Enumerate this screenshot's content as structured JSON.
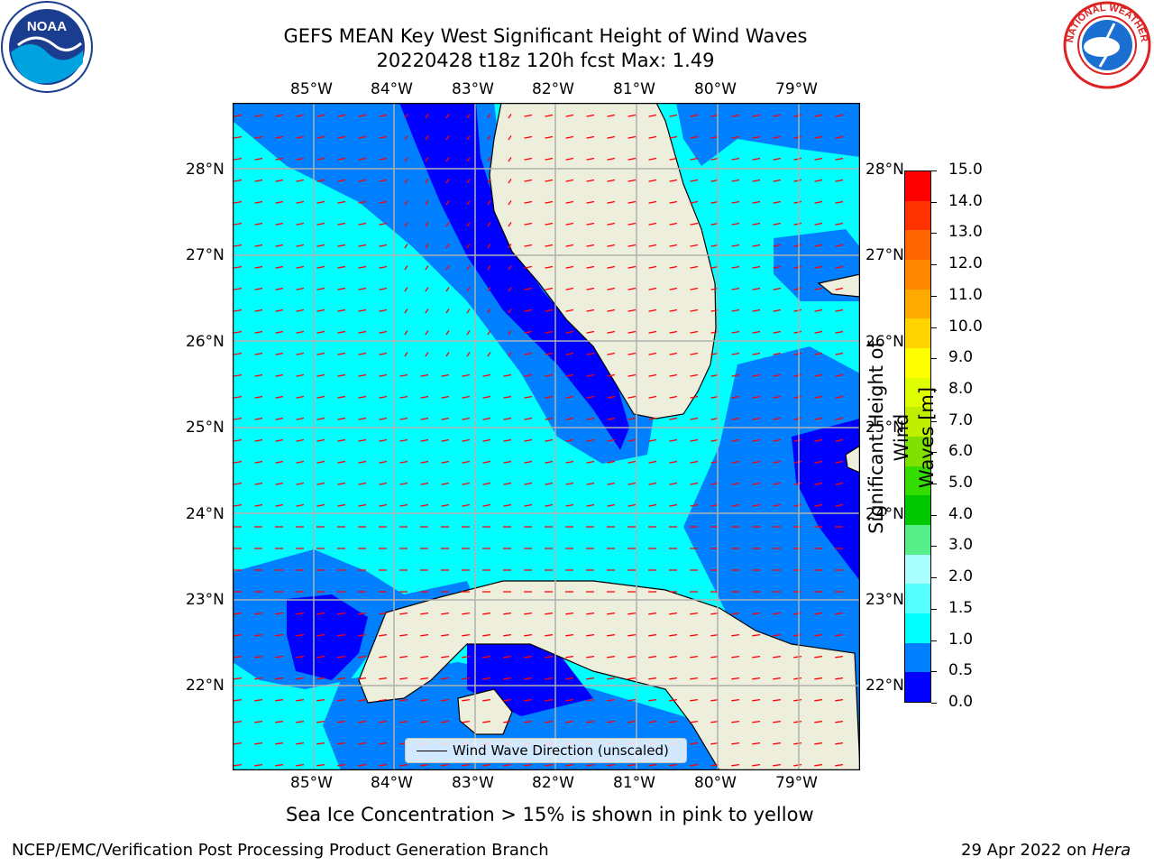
{
  "header": {
    "title_line1": "GEFS MEAN Key West Significant Height of Wind Waves",
    "title_line2": "20220428 t18z 120h fcst   Max: 1.49"
  },
  "map": {
    "lon_labels": [
      "85°W",
      "84°W",
      "83°W",
      "82°W",
      "81°W",
      "80°W",
      "79°W"
    ],
    "lat_labels": [
      "28°N",
      "27°N",
      "26°N",
      "25°N",
      "24°N",
      "23°N",
      "22°N"
    ],
    "colors": {
      "ocean_low": "#0000ff",
      "ocean_mid": "#0080ff",
      "ocean_high": "#00ffff",
      "land": "#eeeedd",
      "arrow": "#ff0000",
      "grid": "#b0b0b0"
    },
    "legend_label": "Wind Wave Direction (unscaled)"
  },
  "colorbar": {
    "title_line1": "Significant Height of Wind",
    "title_line2": "Waves [m]",
    "labels": [
      "15.0",
      "14.0",
      "13.0",
      "12.0",
      "11.0",
      "10.0",
      "9.0",
      "8.0",
      "7.0",
      "6.0",
      "5.0",
      "4.0",
      "3.0",
      "2.0",
      "1.5",
      "1.0",
      "0.5",
      "0.0"
    ],
    "colors_top_to_bottom": [
      "#ff0000",
      "#ff3300",
      "#ff6600",
      "#ff8800",
      "#ffaa00",
      "#ffd400",
      "#ffff00",
      "#dfff00",
      "#c0f000",
      "#80e000",
      "#33dd00",
      "#00c800",
      "#55ee88",
      "#aaffff",
      "#55ffff",
      "#00ffff",
      "#0080ff",
      "#0000ff"
    ]
  },
  "caption": "Sea Ice Concentration > 15% is shown in pink to yellow",
  "footer": {
    "left": "NCEP/EMC/Verification Post Processing Product Generation Branch",
    "right_prefix": "29 Apr 2022 on ",
    "right_host": "Hera"
  },
  "logos": {
    "noaa_text": "NOAA",
    "nws_text": "NATIONAL WEATHER SERVICE"
  }
}
